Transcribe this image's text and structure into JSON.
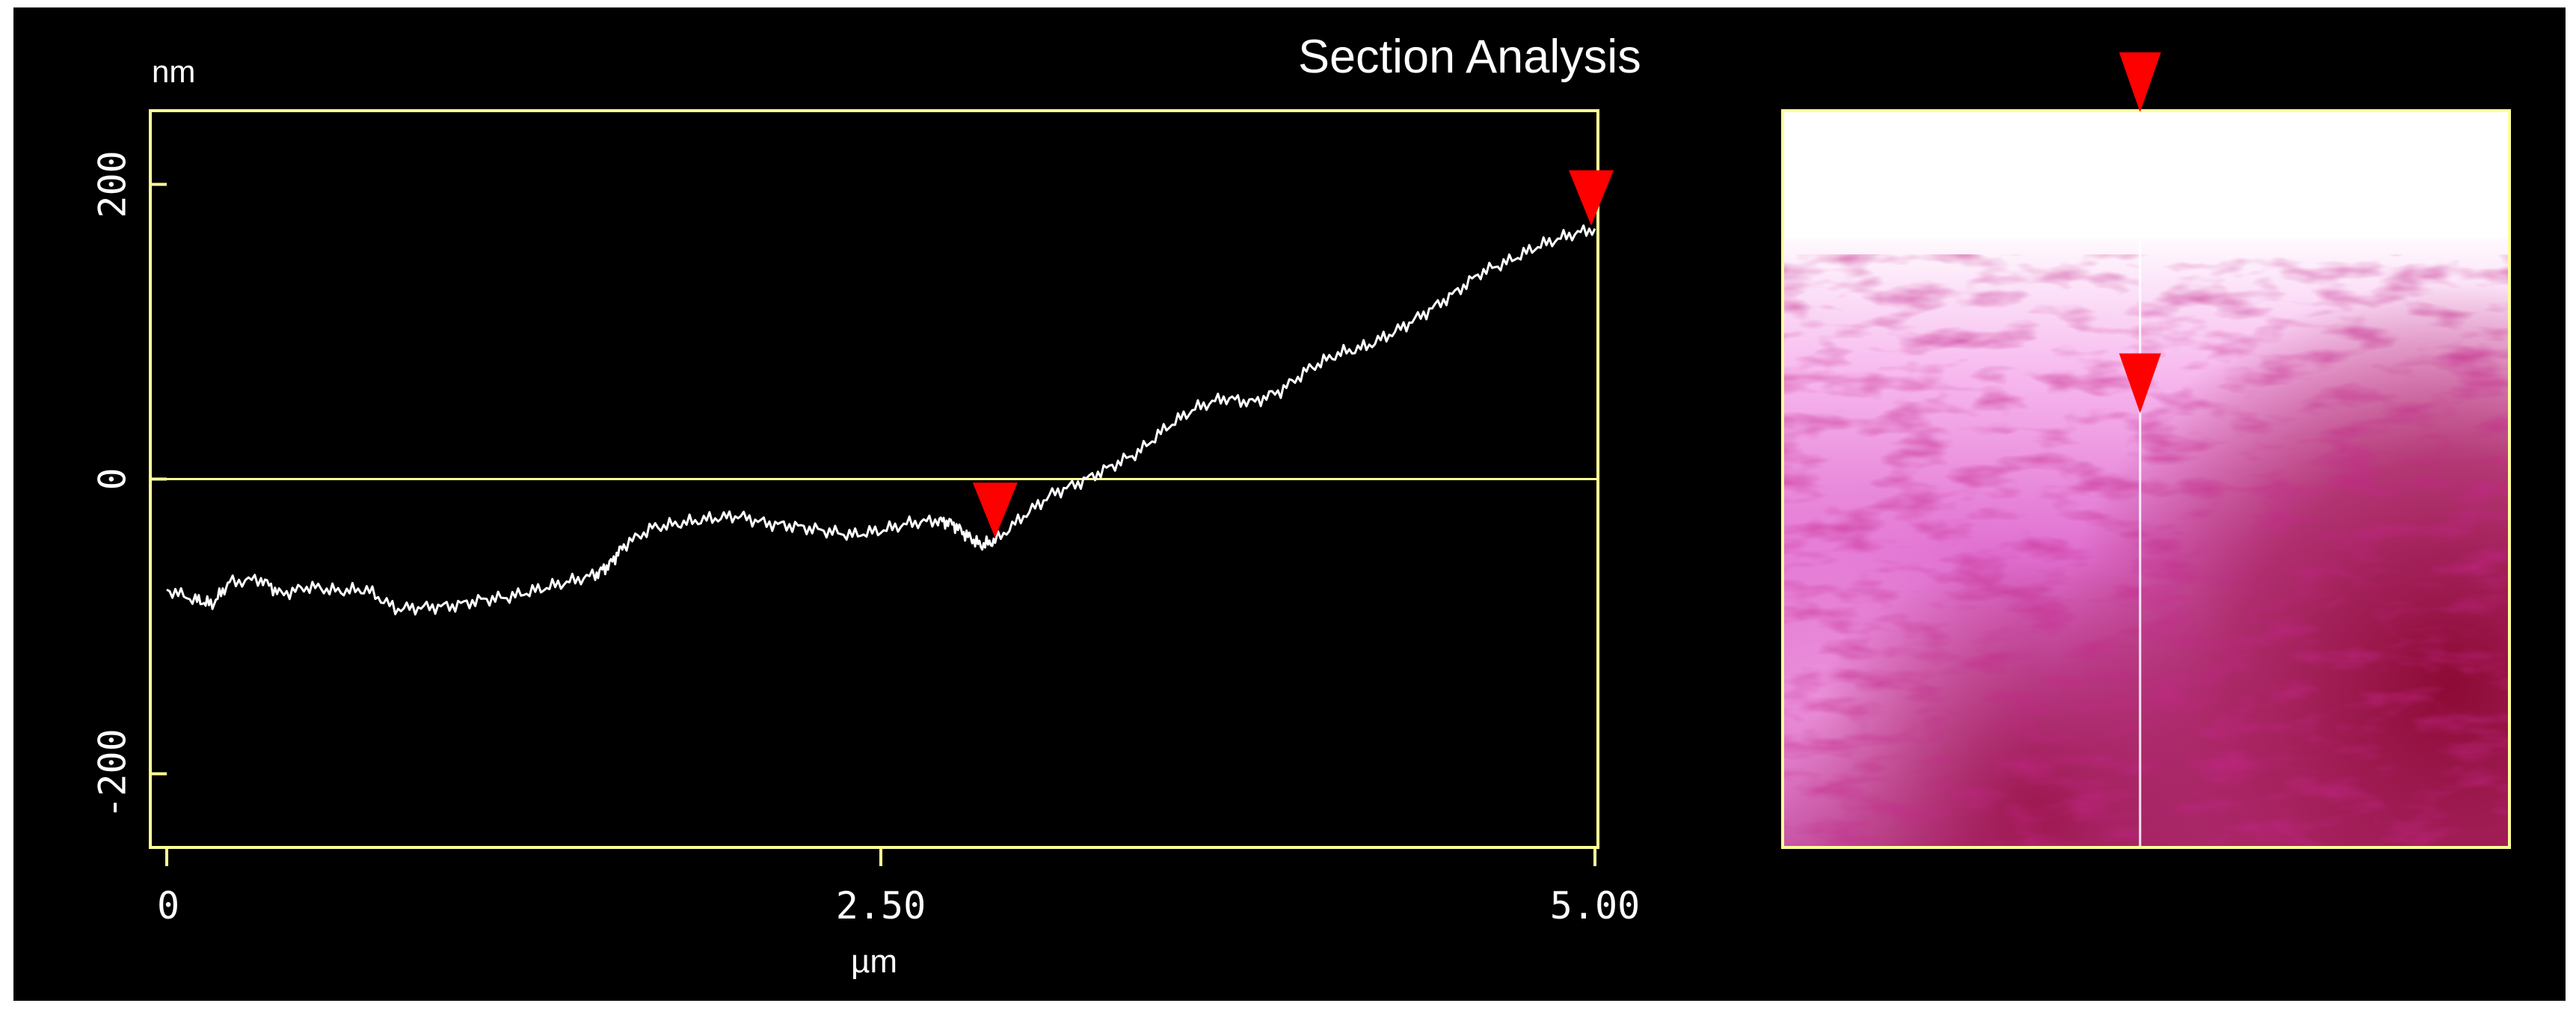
{
  "title": "Section Analysis",
  "chart_data": {
    "type": "line",
    "title": "Section Analysis",
    "xlabel": "µm",
    "ylabel": "nm",
    "xlim": [
      0,
      5.0
    ],
    "ylim": [
      -250,
      250
    ],
    "x_ticks": [
      "0",
      "2.50",
      "5.00"
    ],
    "x_tick_values": [
      0,
      2.5,
      5.0
    ],
    "y_ticks": [
      "200",
      "0",
      "-200"
    ],
    "y_tick_values": [
      200,
      0,
      -200
    ],
    "grid": false,
    "zero_line": true,
    "series": [
      {
        "color": "#ffffff",
        "x": [
          0,
          0.1,
          0.16,
          0.22,
          0.33,
          0.4,
          0.5,
          0.6,
          0.7,
          0.8,
          0.9,
          1.0,
          1.1,
          1.2,
          1.3,
          1.4,
          1.5,
          1.55,
          1.6,
          1.7,
          1.8,
          1.9,
          2.0,
          2.1,
          2.2,
          2.3,
          2.4,
          2.5,
          2.6,
          2.7,
          2.75,
          2.8,
          2.85,
          2.9,
          3.0,
          3.1,
          3.2,
          3.3,
          3.4,
          3.5,
          3.6,
          3.7,
          3.8,
          3.9,
          4.0,
          4.1,
          4.2,
          4.3,
          4.4,
          4.5,
          4.6,
          4.7,
          4.8,
          4.9,
          5.0
        ],
        "y": [
          -75,
          -82,
          -85,
          -70,
          -68,
          -78,
          -73,
          -76,
          -75,
          -88,
          -87,
          -86,
          -82,
          -80,
          -75,
          -70,
          -65,
          -58,
          -45,
          -33,
          -30,
          -27,
          -25,
          -30,
          -32,
          -35,
          -38,
          -35,
          -30,
          -28,
          -30,
          -38,
          -45,
          -42,
          -25,
          -10,
          -2,
          8,
          18,
          35,
          48,
          55,
          52,
          60,
          75,
          85,
          90,
          100,
          112,
          125,
          140,
          148,
          158,
          165,
          170
        ]
      }
    ],
    "cursors": [
      {
        "x": 2.9,
        "y": -42
      },
      {
        "x": 5.0,
        "y": 170
      }
    ]
  },
  "image_panel": {
    "colormap": [
      "#ffffff",
      "#e86fd6",
      "#8c0a34"
    ],
    "scan_line_fraction": 0.5,
    "marker_top_fraction": 0.0,
    "marker_mid_fraction": 0.37
  },
  "colors": {
    "frame": "#ffff99",
    "background": "#000000",
    "trace": "#ffffff",
    "cursor": "#ff0000",
    "text": "#ffffff"
  }
}
